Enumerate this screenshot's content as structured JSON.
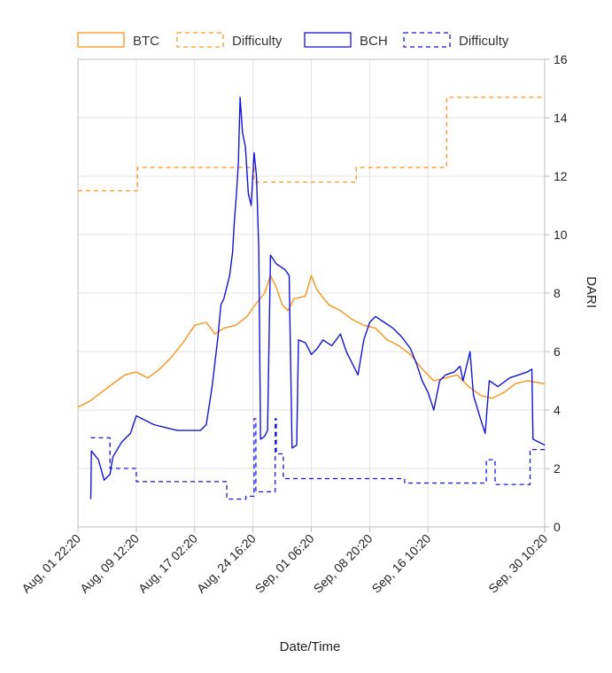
{
  "chart_data": {
    "type": "line",
    "title": "",
    "xlabel": "Date/Time",
    "ylabel": "DARI",
    "ylim": [
      0,
      16
    ],
    "y_ticks": [
      "0",
      "2",
      "4",
      "6",
      "8",
      "10",
      "12",
      "14",
      "16"
    ],
    "x_ticks": [
      "Aug, 01 22:20",
      "Aug, 09 12:20",
      "Aug, 17 02:20",
      "Aug, 24 16:20",
      "Sep, 01 06:20",
      "Sep, 08 20:20",
      "Sep, 16 10:20",
      "Sep, 30 10:20"
    ],
    "x_tick_positions": [
      0,
      1,
      2,
      3,
      4,
      5,
      6,
      8
    ],
    "xlim": [
      0,
      8
    ],
    "grid": true,
    "legend_position": "top",
    "legend": [
      {
        "label": "BTC",
        "color": "#f7931a",
        "dashed": false
      },
      {
        "label": "Difficulty",
        "color": "#f7931a",
        "dashed": true
      },
      {
        "label": "BCH",
        "color": "#1414d8",
        "dashed": false
      },
      {
        "label": "Difficulty",
        "color": "#1414d8",
        "dashed": true
      }
    ],
    "series": [
      {
        "name": "BTC",
        "color": "#f7931a",
        "dashed": false,
        "points": [
          [
            0,
            4.1
          ],
          [
            0.2,
            4.3
          ],
          [
            0.4,
            4.6
          ],
          [
            0.6,
            4.9
          ],
          [
            0.8,
            5.2
          ],
          [
            1.0,
            5.3
          ],
          [
            1.2,
            5.1
          ],
          [
            1.4,
            5.4
          ],
          [
            1.6,
            5.8
          ],
          [
            1.8,
            6.3
          ],
          [
            2.0,
            6.9
          ],
          [
            2.2,
            7.0
          ],
          [
            2.35,
            6.6
          ],
          [
            2.5,
            6.8
          ],
          [
            2.7,
            6.9
          ],
          [
            2.9,
            7.2
          ],
          [
            3.0,
            7.5
          ],
          [
            3.2,
            8.0
          ],
          [
            3.3,
            8.6
          ],
          [
            3.4,
            8.2
          ],
          [
            3.5,
            7.6
          ],
          [
            3.6,
            7.4
          ],
          [
            3.7,
            7.8
          ],
          [
            3.9,
            7.9
          ],
          [
            4.0,
            8.6
          ],
          [
            4.1,
            8.1
          ],
          [
            4.3,
            7.6
          ],
          [
            4.5,
            7.4
          ],
          [
            4.7,
            7.1
          ],
          [
            4.9,
            6.9
          ],
          [
            5.1,
            6.8
          ],
          [
            5.3,
            6.4
          ],
          [
            5.5,
            6.2
          ],
          [
            5.7,
            5.9
          ],
          [
            5.9,
            5.4
          ],
          [
            6.1,
            5.0
          ],
          [
            6.3,
            5.1
          ],
          [
            6.5,
            5.2
          ],
          [
            6.7,
            4.8
          ],
          [
            6.9,
            4.5
          ],
          [
            7.1,
            4.4
          ],
          [
            7.3,
            4.6
          ],
          [
            7.5,
            4.9
          ],
          [
            7.7,
            5.0
          ],
          [
            8.0,
            4.9
          ]
        ]
      },
      {
        "name": "Difficulty",
        "color": "#f7931a",
        "dashed": true,
        "points": [
          [
            0,
            11.5
          ],
          [
            1.02,
            11.5
          ],
          [
            1.02,
            12.3
          ],
          [
            3.02,
            12.3
          ],
          [
            3.02,
            11.8
          ],
          [
            4.77,
            11.8
          ],
          [
            4.77,
            12.3
          ],
          [
            6.32,
            12.3
          ],
          [
            6.32,
            14.7
          ],
          [
            8.0,
            14.7
          ]
        ]
      },
      {
        "name": "BCH",
        "color": "#1414d8",
        "dashed": false,
        "points": [
          [
            0.22,
            0.95
          ],
          [
            0.23,
            2.6
          ],
          [
            0.35,
            2.3
          ],
          [
            0.45,
            1.6
          ],
          [
            0.55,
            1.8
          ],
          [
            0.6,
            2.4
          ],
          [
            0.75,
            2.9
          ],
          [
            0.9,
            3.2
          ],
          [
            1.0,
            3.8
          ],
          [
            1.1,
            3.7
          ],
          [
            1.3,
            3.5
          ],
          [
            1.5,
            3.4
          ],
          [
            1.7,
            3.3
          ],
          [
            1.9,
            3.3
          ],
          [
            2.1,
            3.3
          ],
          [
            2.2,
            3.5
          ],
          [
            2.3,
            4.8
          ],
          [
            2.4,
            6.5
          ],
          [
            2.45,
            7.6
          ],
          [
            2.5,
            7.8
          ],
          [
            2.55,
            8.2
          ],
          [
            2.6,
            8.6
          ],
          [
            2.65,
            9.4
          ],
          [
            2.68,
            10.4
          ],
          [
            2.72,
            11.5
          ],
          [
            2.75,
            12.5
          ],
          [
            2.78,
            14.7
          ],
          [
            2.82,
            13.5
          ],
          [
            2.87,
            13.0
          ],
          [
            2.92,
            11.4
          ],
          [
            2.97,
            11.0
          ],
          [
            3.02,
            12.8
          ],
          [
            3.06,
            12.0
          ],
          [
            3.1,
            9.5
          ],
          [
            3.13,
            3.0
          ],
          [
            3.2,
            3.1
          ],
          [
            3.25,
            3.3
          ],
          [
            3.3,
            9.3
          ],
          [
            3.4,
            9.0
          ],
          [
            3.55,
            8.8
          ],
          [
            3.62,
            8.6
          ],
          [
            3.67,
            2.7
          ],
          [
            3.75,
            2.8
          ],
          [
            3.78,
            6.4
          ],
          [
            3.9,
            6.3
          ],
          [
            4.0,
            5.9
          ],
          [
            4.1,
            6.1
          ],
          [
            4.2,
            6.4
          ],
          [
            4.35,
            6.2
          ],
          [
            4.5,
            6.6
          ],
          [
            4.6,
            6.0
          ],
          [
            4.7,
            5.6
          ],
          [
            4.8,
            5.2
          ],
          [
            4.9,
            6.4
          ],
          [
            5.0,
            7.0
          ],
          [
            5.1,
            7.2
          ],
          [
            5.25,
            7.0
          ],
          [
            5.4,
            6.8
          ],
          [
            5.55,
            6.5
          ],
          [
            5.7,
            6.1
          ],
          [
            5.8,
            5.6
          ],
          [
            5.9,
            5.0
          ],
          [
            6.0,
            4.6
          ],
          [
            6.1,
            4.0
          ],
          [
            6.2,
            5.0
          ],
          [
            6.3,
            5.2
          ],
          [
            6.45,
            5.3
          ],
          [
            6.55,
            5.5
          ],
          [
            6.6,
            5.0
          ],
          [
            6.72,
            6.0
          ],
          [
            6.78,
            4.5
          ],
          [
            6.9,
            3.7
          ],
          [
            6.98,
            3.2
          ],
          [
            7.05,
            5.0
          ],
          [
            7.2,
            4.8
          ],
          [
            7.4,
            5.1
          ],
          [
            7.55,
            5.2
          ],
          [
            7.7,
            5.3
          ],
          [
            7.78,
            5.4
          ],
          [
            7.8,
            3.0
          ],
          [
            7.9,
            2.9
          ],
          [
            8.0,
            2.8
          ]
        ]
      },
      {
        "name": "Difficulty",
        "color": "#1414d8",
        "dashed": true,
        "points": [
          [
            0.22,
            3.05
          ],
          [
            0.55,
            3.05
          ],
          [
            0.55,
            2.0
          ],
          [
            1.0,
            2.0
          ],
          [
            1.0,
            1.55
          ],
          [
            2.55,
            1.55
          ],
          [
            2.55,
            0.95
          ],
          [
            2.88,
            0.95
          ],
          [
            2.88,
            1.05
          ],
          [
            3.02,
            1.05
          ],
          [
            3.02,
            3.7
          ],
          [
            3.05,
            3.7
          ],
          [
            3.05,
            1.2
          ],
          [
            3.38,
            1.2
          ],
          [
            3.38,
            3.7
          ],
          [
            3.4,
            3.7
          ],
          [
            3.4,
            2.5
          ],
          [
            3.52,
            2.5
          ],
          [
            3.52,
            1.65
          ],
          [
            5.6,
            1.65
          ],
          [
            5.6,
            1.5
          ],
          [
            7.0,
            1.5
          ],
          [
            7.0,
            2.3
          ],
          [
            7.15,
            2.3
          ],
          [
            7.15,
            1.45
          ],
          [
            7.75,
            1.45
          ],
          [
            7.75,
            2.65
          ],
          [
            8.0,
            2.65
          ]
        ]
      }
    ]
  }
}
